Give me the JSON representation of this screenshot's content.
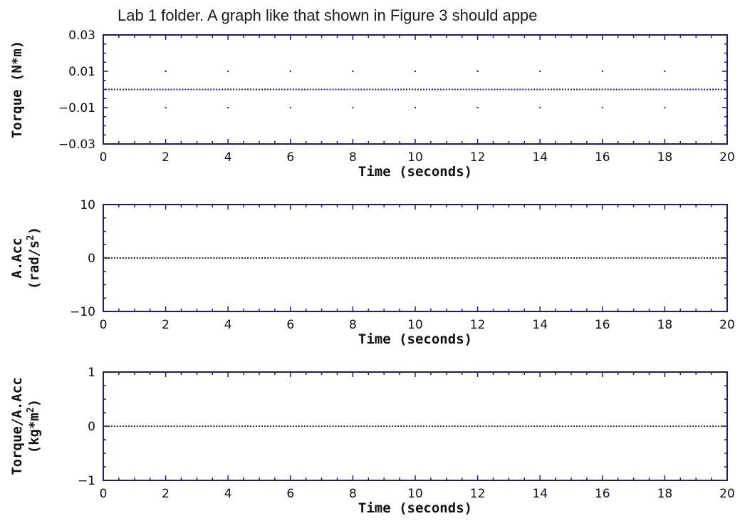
{
  "header": {
    "caption": "Lab 1 folder. A graph like that shown in Figure 3 should appe"
  },
  "colors": {
    "axis_frame": "#1a1a8c",
    "data_dots": "#1a1a8c",
    "text": "#111111"
  },
  "chart_data": [
    {
      "type": "scatter",
      "title": "",
      "xlabel": "Time (seconds)",
      "ylabel": {
        "main": "Torque (N*m)",
        "line2": "",
        "sup": ""
      },
      "xlim": [
        0,
        20
      ],
      "ylim": [
        -0.03,
        0.03
      ],
      "x_ticks": [
        0,
        2,
        4,
        6,
        8,
        10,
        12,
        14,
        16,
        18,
        20
      ],
      "y_ticks": [
        0.03,
        0.01,
        -0.01,
        -0.03
      ],
      "y_tick_labels": [
        "0.03",
        "0.01",
        "−0.01",
        "−0.03"
      ],
      "grid": "dotted",
      "series": [
        {
          "x": [
            0,
            0.1,
            0.2,
            0.3,
            0.4,
            0.5,
            0.6,
            0.7,
            0.8,
            0.9,
            1.0,
            1.1,
            1.2,
            1.3,
            1.4,
            1.5,
            1.6,
            1.7,
            1.8,
            1.9,
            2.0,
            2.1,
            2.2,
            2.3,
            2.4,
            2.5,
            2.6,
            2.7,
            2.8,
            2.9,
            3.0,
            3.1,
            3.2,
            3.3,
            3.4,
            3.5,
            3.6,
            3.7,
            3.8,
            3.9,
            4.0,
            4.1,
            4.2,
            4.3,
            4.4,
            4.5,
            4.6,
            4.7,
            4.8,
            4.9,
            5.0,
            5.1,
            5.2,
            5.3,
            5.4,
            5.5,
            5.6,
            5.7,
            5.8,
            5.9,
            6.0,
            6.1,
            6.2,
            6.3,
            6.4,
            6.5,
            6.6,
            6.7,
            6.8,
            6.9,
            7.0,
            7.1,
            7.2,
            7.3,
            7.4,
            7.5,
            7.6,
            7.7,
            7.8,
            7.9,
            8.0,
            8.1,
            8.2,
            8.3,
            8.4,
            8.5,
            8.6,
            8.7,
            8.8,
            8.9,
            9.0,
            9.1,
            9.2,
            9.3,
            9.4,
            9.5,
            9.6,
            9.7,
            9.8,
            9.9,
            10.0,
            10.1,
            10.2,
            10.3,
            10.4,
            10.5,
            10.6,
            10.7,
            10.8,
            10.9,
            11.0,
            11.1,
            11.2,
            11.3,
            11.4,
            11.5,
            11.6,
            11.7,
            11.8,
            11.9,
            12.0,
            12.1,
            12.2,
            12.3,
            12.4,
            12.5,
            12.6,
            12.7,
            12.8,
            12.9,
            13.0,
            13.1,
            13.2,
            13.3,
            13.4,
            13.5,
            13.6,
            13.7,
            13.8,
            13.9,
            14.0,
            14.1,
            14.2,
            14.3,
            14.4,
            14.5,
            14.6,
            14.7,
            14.8,
            14.9,
            15.0,
            15.1,
            15.2,
            15.3,
            15.4,
            15.5,
            15.6,
            15.7,
            15.8,
            15.9,
            16.0,
            16.1,
            16.2,
            16.3,
            16.4,
            16.5,
            16.6,
            16.7,
            16.8,
            16.9,
            17.0,
            17.1,
            17.2,
            17.3,
            17.4,
            17.5,
            17.6,
            17.7,
            17.8,
            17.9,
            18.0,
            18.1,
            18.2,
            18.3,
            18.4,
            18.5,
            18.6,
            18.7,
            18.8,
            18.9,
            19.0,
            19.1,
            19.2,
            19.3,
            19.4,
            19.5,
            19.6,
            19.7,
            19.8,
            19.9,
            20.0
          ],
          "y_const": 0
        }
      ]
    },
    {
      "type": "scatter",
      "title": "",
      "xlabel": "Time (seconds)",
      "ylabel": {
        "main": "A.Acc",
        "line2": "(rad/s",
        "sup": "2",
        "close": ")"
      },
      "xlim": [
        0,
        20
      ],
      "ylim": [
        -10,
        10
      ],
      "x_ticks": [
        0,
        2,
        4,
        6,
        8,
        10,
        12,
        14,
        16,
        18,
        20
      ],
      "y_ticks": [
        10,
        0,
        -10
      ],
      "y_tick_labels": [
        "10",
        "0",
        "−10"
      ],
      "grid": "off",
      "series": [
        {
          "y_const": 0
        }
      ]
    },
    {
      "type": "scatter",
      "title": "",
      "xlabel": "Time (seconds)",
      "ylabel": {
        "main": "Torque/A.Acc",
        "line2": "(kg*m",
        "sup": "2",
        "close": ")"
      },
      "xlim": [
        0,
        20
      ],
      "ylim": [
        -1,
        1
      ],
      "x_ticks": [
        0,
        2,
        4,
        6,
        8,
        10,
        12,
        14,
        16,
        18,
        20
      ],
      "y_ticks": [
        1,
        0,
        -1
      ],
      "y_tick_labels": [
        "1",
        "0",
        "−1"
      ],
      "grid": "off",
      "series": [
        {
          "y_const": 0
        }
      ]
    }
  ]
}
